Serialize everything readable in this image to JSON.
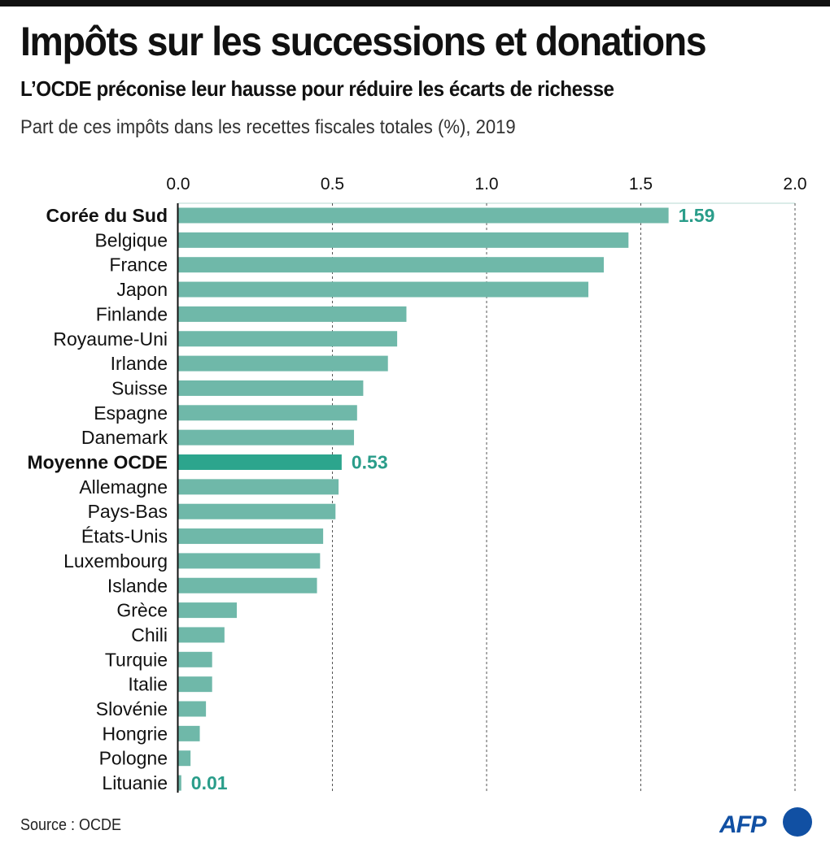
{
  "header": {
    "title": "Impôts sur les successions et donations",
    "subtitle": "L’OCDE préconise leur hausse pour réduire les écarts de richesse",
    "description": "Part de ces impôts dans les recettes fiscales totales (%), 2019"
  },
  "footer": {
    "source": "Source : OCDE",
    "logo_text": "AFP"
  },
  "colors": {
    "bar": "#6fb8a9",
    "highlight_bar": "#2ca58d",
    "value_label": "#2a9d8a",
    "logo": "#1150a3"
  },
  "chart_data": {
    "type": "bar",
    "orientation": "horizontal",
    "title": "Impôts sur les successions et donations",
    "xlabel": "Part de ces impôts dans les recettes fiscales totales (%), 2019",
    "ylabel": "",
    "xlim": [
      0,
      2.0
    ],
    "x_ticks": [
      "0.0",
      "0.5",
      "1.0",
      "1.5",
      "2.0"
    ],
    "x_tick_values": [
      0,
      0.5,
      1.0,
      1.5,
      2.0
    ],
    "grid": true,
    "categories": [
      "Corée du Sud",
      "Belgique",
      "France",
      "Japon",
      "Finlande",
      "Royaume-Uni",
      "Irlande",
      "Suisse",
      "Espagne",
      "Danemark",
      "Moyenne OCDE",
      "Allemagne",
      "Pays-Bas",
      "États-Unis",
      "Luxembourg",
      "Islande",
      "Grèce",
      "Chili",
      "Turquie",
      "Italie",
      "Slovénie",
      "Hongrie",
      "Pologne",
      "Lituanie"
    ],
    "values": [
      1.59,
      1.46,
      1.38,
      1.33,
      0.74,
      0.71,
      0.68,
      0.6,
      0.58,
      0.57,
      0.53,
      0.52,
      0.51,
      0.47,
      0.46,
      0.45,
      0.19,
      0.15,
      0.11,
      0.11,
      0.09,
      0.07,
      0.04,
      0.01
    ],
    "bold_categories": [
      "Corée du Sud",
      "Moyenne OCDE"
    ],
    "highlighted_category": "Moyenne OCDE",
    "data_labels": [
      {
        "category": "Corée du Sud",
        "text": "1.59"
      },
      {
        "category": "Moyenne OCDE",
        "text": "0.53"
      },
      {
        "category": "Lituanie",
        "text": "0.01"
      }
    ]
  }
}
